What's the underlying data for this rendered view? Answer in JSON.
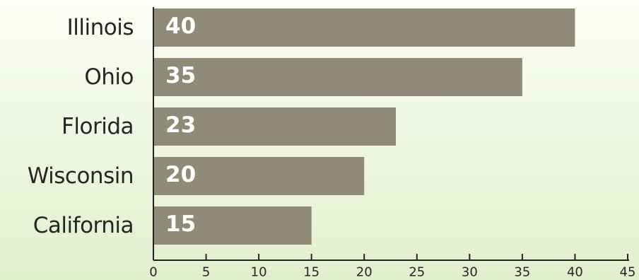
{
  "chart_data": {
    "type": "bar",
    "orientation": "horizontal",
    "categories": [
      "Illinois",
      "Ohio",
      "Florida",
      "Wisconsin",
      "California"
    ],
    "values": [
      40,
      35,
      23,
      20,
      15
    ],
    "data_labels": [
      "40",
      "35",
      "23",
      "20",
      "15"
    ],
    "xlim": [
      0,
      45
    ],
    "x_ticks": [
      "0",
      "5",
      "10",
      "15",
      "20",
      "25",
      "30",
      "35",
      "40",
      "45"
    ],
    "title": "",
    "xlabel": "",
    "ylabel": "",
    "grid": false,
    "legend": false,
    "colors": {
      "bar": "#908a78",
      "axis": "#222222",
      "category_text": "#262626",
      "data_label_text": "#ffffff"
    }
  }
}
